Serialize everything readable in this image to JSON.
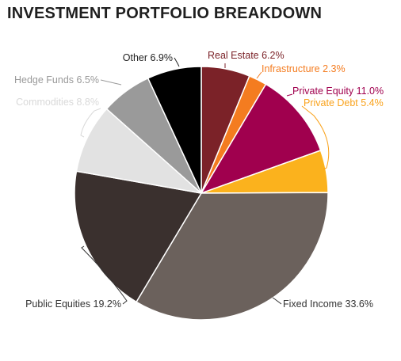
{
  "chart_data": {
    "type": "pie",
    "title": "INVESTMENT PORTFOLIO BREAKDOWN",
    "slices": [
      {
        "label": "Real Estate 6.2%",
        "value": 6.2,
        "color": "#7b2228",
        "label_color": "#7b2228"
      },
      {
        "label": "Infrastructure 2.3%",
        "value": 2.3,
        "color": "#f47c20",
        "label_color": "#f47c20"
      },
      {
        "label": "Private Equity 11.0%",
        "value": 11.0,
        "color": "#a0004e",
        "label_color": "#a0004e"
      },
      {
        "label": "Private Debt 5.4%",
        "value": 5.4,
        "color": "#fbb21d",
        "label_color": "#f9a21b"
      },
      {
        "label": "Fixed Income 33.6%",
        "value": 33.6,
        "color": "#6b615c",
        "label_color": "#333333"
      },
      {
        "label": "Public Equities 19.2%",
        "value": 19.2,
        "color": "#3a302e",
        "label_color": "#333333"
      },
      {
        "label": "Commodities 8.8%",
        "value": 8.8,
        "color": "#e2e2e2",
        "label_color": "#d9d9d9"
      },
      {
        "label": "Hedge Funds 6.5%",
        "value": 6.5,
        "color": "#9a9a9a",
        "label_color": "#9a9a9a"
      },
      {
        "label": "Other 6.9%",
        "value": 6.9,
        "color": "#000000",
        "label_color": "#222222"
      }
    ]
  }
}
